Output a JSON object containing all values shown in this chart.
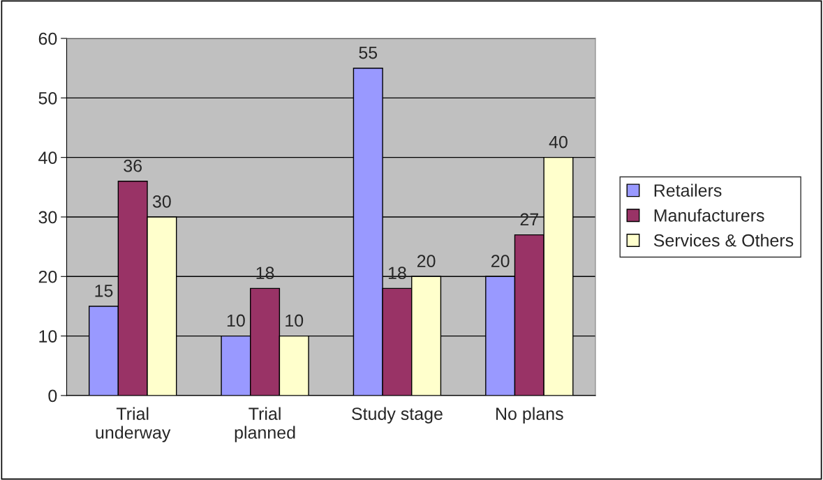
{
  "chart_data": {
    "type": "bar",
    "categories": [
      "Trial\nunderway",
      "Trial\nplanned",
      "Study stage",
      "No plans"
    ],
    "series": [
      {
        "name": "Retailers",
        "color": "#9999ff",
        "values": [
          15,
          10,
          55,
          20
        ]
      },
      {
        "name": "Manufacturers",
        "color": "#993366",
        "values": [
          36,
          18,
          18,
          27
        ]
      },
      {
        "name": "Services & Others",
        "color": "#ffffcc",
        "values": [
          30,
          10,
          20,
          40
        ]
      }
    ],
    "ylim": [
      0,
      60
    ],
    "yticks": [
      0,
      10,
      20,
      30,
      40,
      50,
      60
    ],
    "grid": "y",
    "legend": "right",
    "data_labels": true
  }
}
